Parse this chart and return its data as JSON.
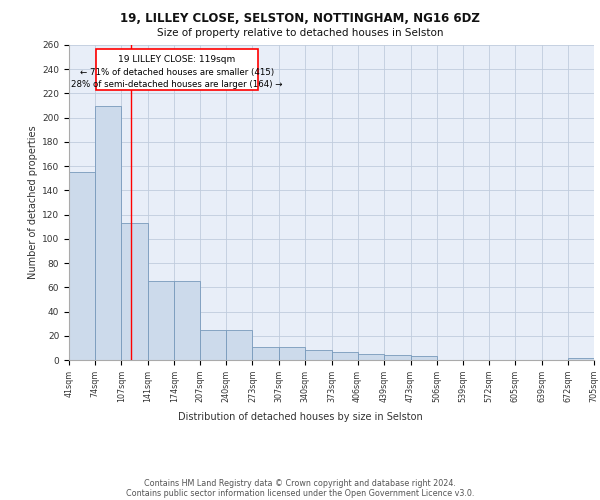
{
  "title1": "19, LILLEY CLOSE, SELSTON, NOTTINGHAM, NG16 6DZ",
  "title2": "Size of property relative to detached houses in Selston",
  "xlabel": "Distribution of detached houses by size in Selston",
  "ylabel": "Number of detached properties",
  "bar_color": "#ccdaeb",
  "bar_edge_color": "#7799bb",
  "background_color": "#e8eef8",
  "grid_color": "#c0ccdd",
  "red_line_x": 119,
  "annotation_title": "19 LILLEY CLOSE: 119sqm",
  "annotation_line1": "← 71% of detached houses are smaller (415)",
  "annotation_line2": "28% of semi-detached houses are larger (164) →",
  "bin_edges": [
    41,
    74,
    107,
    141,
    174,
    207,
    240,
    273,
    307,
    340,
    373,
    406,
    439,
    473,
    506,
    539,
    572,
    605,
    639,
    672,
    705
  ],
  "bar_heights": [
    155,
    210,
    113,
    65,
    65,
    25,
    25,
    11,
    11,
    8,
    7,
    5,
    4,
    3,
    0,
    0,
    0,
    0,
    0,
    2
  ],
  "xlim_min": 41,
  "xlim_max": 705,
  "ylim_min": 0,
  "ylim_max": 260,
  "yticks": [
    0,
    20,
    40,
    60,
    80,
    100,
    120,
    140,
    160,
    180,
    200,
    220,
    240,
    260
  ],
  "tick_labels": [
    "41sqm",
    "74sqm",
    "107sqm",
    "141sqm",
    "174sqm",
    "207sqm",
    "240sqm",
    "273sqm",
    "307sqm",
    "340sqm",
    "373sqm",
    "406sqm",
    "439sqm",
    "473sqm",
    "506sqm",
    "539sqm",
    "572sqm",
    "605sqm",
    "639sqm",
    "672sqm",
    "705sqm"
  ],
  "footer_line1": "Contains HM Land Registry data © Crown copyright and database right 2024.",
  "footer_line2": "Contains public sector information licensed under the Open Government Licence v3.0."
}
